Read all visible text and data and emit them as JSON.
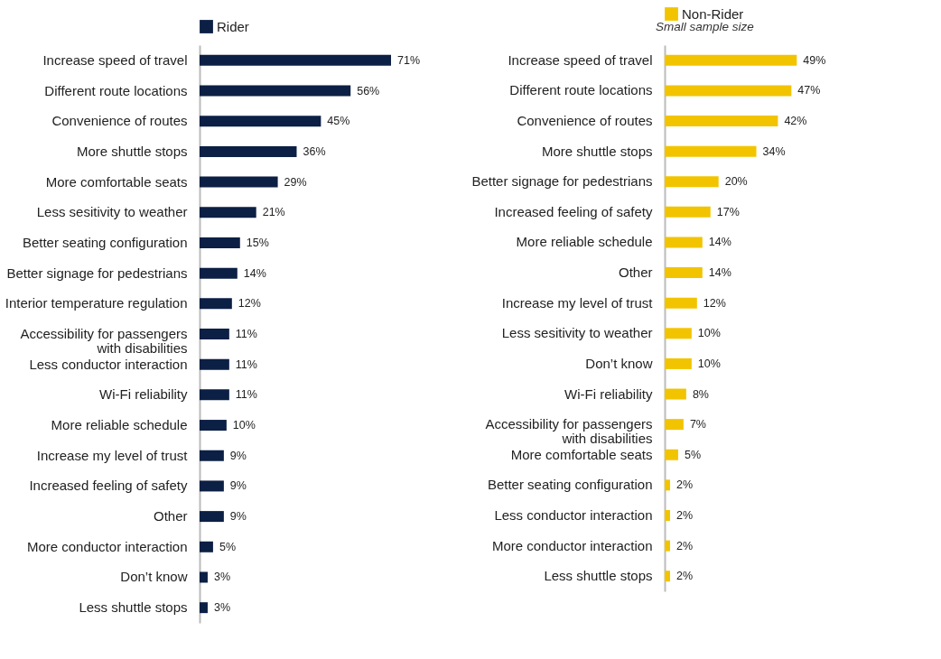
{
  "chart_data": [
    {
      "type": "bar",
      "orientation": "horizontal",
      "legend": "top",
      "tick_labels": "y",
      "categories": [
        "Increase speed of travel",
        "Different route locations",
        "Convenience of routes",
        "More shuttle stops",
        "More comfortable seats",
        "Less sesitivity to weather",
        "Better seating configuration",
        "Better signage for pedestrians",
        "Interior temperature regulation",
        "Accessibility for passengers\nwith disabilities",
        "Less conductor interaction",
        "Wi-Fi reliability",
        "More reliable schedule",
        "Increase my level of trust",
        "Increased feeling of safety",
        "Other",
        "More conductor interaction",
        "Don’t know",
        "Less shuttle stops"
      ],
      "series": [
        {
          "name": "Rider",
          "color": "#0c1f44",
          "values": [
            71,
            56,
            45,
            36,
            29,
            21,
            15,
            14,
            12,
            11,
            11,
            11,
            10,
            9,
            9,
            9,
            5,
            3,
            3
          ],
          "value_labels": [
            "71%",
            "56%",
            "45%",
            "36%",
            "29%",
            "21%",
            "15%",
            "14%",
            "12%",
            "11%",
            "11%",
            "11%",
            "10%",
            "9%",
            "9%",
            "9%",
            "5%",
            "3%",
            "3%"
          ]
        }
      ]
    },
    {
      "type": "bar",
      "orientation": "horizontal",
      "legend": "top",
      "tick_labels": "y",
      "subtitle": "Small sample size",
      "categories": [
        "Increase speed of travel",
        "Different route locations",
        "Convenience of routes",
        "More shuttle stops",
        "Better signage for pedestrians",
        "Increased feeling of safety",
        "More reliable schedule",
        "Other",
        "Increase my level of trust",
        "Less sesitivity to weather",
        "Don’t know",
        "Wi-Fi reliability",
        "Accessibility for passengers\nwith disabilities",
        "More comfortable seats",
        "Better seating configuration",
        "Less conductor interaction",
        "More conductor interaction",
        "Less shuttle stops"
      ],
      "series": [
        {
          "name": "Non-Rider",
          "color": "#f2c400",
          "values": [
            49,
            47,
            42,
            34,
            20,
            17,
            14,
            14,
            12,
            10,
            10,
            8,
            7,
            5,
            2,
            2,
            2,
            2
          ],
          "value_labels": [
            "49%",
            "47%",
            "42%",
            "34%",
            "20%",
            "17%",
            "14%",
            "14%",
            "12%",
            "10%",
            "10%",
            "8%",
            "7%",
            "5%",
            "2%",
            "2%",
            "2%",
            "2%"
          ]
        }
      ]
    }
  ]
}
